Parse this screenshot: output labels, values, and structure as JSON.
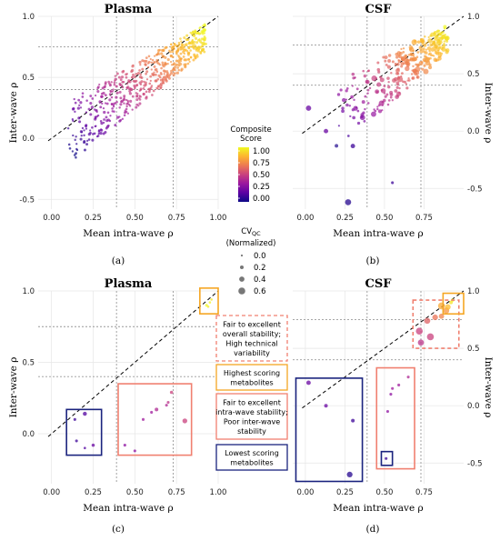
{
  "colors": {
    "gradient": [
      "#0d0887",
      "#5b02a3",
      "#9a169f",
      "#c9417e",
      "#ec7853",
      "#fdb42f",
      "#f0f921"
    ],
    "fair_excellent_high_var": "#f08070",
    "highest_scoring": "#f5a623",
    "fair_intra_poor_inter": "#f08070",
    "lowest_scoring": "#1a237e",
    "grid": "#e6e6e6",
    "reference": "#999999"
  },
  "legend": {
    "composite_title_1": "Composite",
    "composite_title_2": "Score",
    "composite_ticks": [
      "1.00",
      "0.75",
      "0.50",
      "0.25",
      "0.00"
    ],
    "cv_title_main": "CV",
    "cv_title_sub": "QC",
    "cv_title_2": "(Normalized)",
    "cv_ticks": [
      "0.0",
      "0.2",
      "0.4",
      "0.6"
    ]
  },
  "annotations": {
    "fair_excellent_high_var": [
      "Fair to excellent",
      "overall stability;",
      "High technical",
      "variability"
    ],
    "highest_scoring": [
      "Highest scoring",
      "metabolites"
    ],
    "fair_intra_poor_inter": [
      "Fair to excellent",
      "intra-wave stability;",
      "Poor inter-wave",
      "stability"
    ],
    "lowest_scoring": [
      "Lowest scoring",
      "metabolites"
    ]
  },
  "chart_data": [
    {
      "panel": "(a)",
      "type": "scatter",
      "title": "Plasma",
      "xlabel": "Mean intra-wave ρ",
      "ylabel": "Inter-wave ρ",
      "xlim": [
        -0.08,
        1.0
      ],
      "ylim": [
        -0.58,
        1.0
      ],
      "xticks": [
        "0.00",
        "0.25",
        "0.50",
        "0.75",
        "1.00"
      ],
      "yticks": [
        "-0.5",
        "0.0",
        "0.5",
        "1.0"
      ],
      "reference_x": [
        0.39,
        0.73
      ],
      "reference_y": [
        0.4,
        0.75
      ],
      "identity_line": true,
      "points_note": "dense cloud of ~600 metabolites along the diagonal, composite score rising with intra- and inter-wave ρ"
    },
    {
      "panel": "(b)",
      "type": "scatter",
      "title": "CSF",
      "xlabel": "Mean intra-wave ρ",
      "ylabel": "Inter-wave ρ",
      "xlim": [
        -0.08,
        1.0
      ],
      "ylim": [
        -0.68,
        1.0
      ],
      "xticks": [
        "0.00",
        "0.25",
        "0.50",
        "0.75"
      ],
      "yticks": [
        "-0.5",
        "0.0",
        "0.5",
        "1.0"
      ],
      "reference_x": [
        0.39,
        0.73
      ],
      "reference_y": [
        0.4,
        0.75
      ],
      "identity_line": true,
      "points": [
        {
          "x": 0.27,
          "y": -0.62,
          "s": 0.5,
          "c": 0.05
        },
        {
          "x": 0.55,
          "y": -0.45,
          "s": 0.1,
          "c": 0.1
        },
        {
          "x": 0.02,
          "y": 0.2,
          "s": 0.4,
          "c": 0.2
        },
        {
          "x": 0.13,
          "y": 0.0,
          "s": 0.3,
          "c": 0.2
        },
        {
          "x": 0.3,
          "y": -0.13,
          "s": 0.3,
          "c": 0.1
        }
      ]
    },
    {
      "panel": "(c)",
      "type": "scatter",
      "title": "Plasma",
      "xlabel": "Mean intra-wave ρ",
      "ylabel": "Inter-wave ρ",
      "xlim": [
        -0.08,
        1.0
      ],
      "ylim": [
        -0.35,
        1.0
      ],
      "xticks": [
        "0.00",
        "0.25",
        "0.50",
        "0.75",
        "1.00"
      ],
      "yticks": [
        "0.0",
        "0.5",
        "1.0"
      ],
      "reference_x": [
        0.39,
        0.73
      ],
      "reference_y": [
        0.4,
        0.75
      ],
      "identity_line": true,
      "points": [
        {
          "x": 0.93,
          "y": 0.9,
          "s": 0.1,
          "c": 1.0
        },
        {
          "x": 0.95,
          "y": 0.92,
          "s": 0.05,
          "c": 0.98
        },
        {
          "x": 0.96,
          "y": 0.94,
          "s": 0.05,
          "c": 0.96
        },
        {
          "x": 0.94,
          "y": 0.89,
          "s": 0.05,
          "c": 0.97
        },
        {
          "x": 0.14,
          "y": 0.1,
          "s": 0.1,
          "c": 0.1
        },
        {
          "x": 0.2,
          "y": 0.14,
          "s": 0.25,
          "c": 0.15
        },
        {
          "x": 0.15,
          "y": -0.05,
          "s": 0.1,
          "c": 0.1
        },
        {
          "x": 0.2,
          "y": -0.1,
          "s": 0.05,
          "c": 0.15
        },
        {
          "x": 0.25,
          "y": -0.08,
          "s": 0.15,
          "c": 0.2
        },
        {
          "x": 0.44,
          "y": -0.08,
          "s": 0.1,
          "c": 0.3
        },
        {
          "x": 0.5,
          "y": -0.12,
          "s": 0.1,
          "c": 0.3
        },
        {
          "x": 0.55,
          "y": 0.1,
          "s": 0.1,
          "c": 0.35
        },
        {
          "x": 0.6,
          "y": 0.15,
          "s": 0.1,
          "c": 0.35
        },
        {
          "x": 0.63,
          "y": 0.17,
          "s": 0.2,
          "c": 0.4
        },
        {
          "x": 0.69,
          "y": 0.2,
          "s": 0.1,
          "c": 0.4
        },
        {
          "x": 0.7,
          "y": 0.22,
          "s": 0.1,
          "c": 0.45
        },
        {
          "x": 0.72,
          "y": 0.29,
          "s": 0.15,
          "c": 0.5
        },
        {
          "x": 0.8,
          "y": 0.09,
          "s": 0.35,
          "c": 0.5
        }
      ]
    },
    {
      "panel": "(d)",
      "type": "scatter",
      "title": "CSF",
      "xlabel": "Mean intra-wave ρ",
      "ylabel": "Inter-wave ρ",
      "xlim": [
        -0.08,
        1.0
      ],
      "ylim": [
        -0.68,
        1.0
      ],
      "xticks": [
        "0.00",
        "0.25",
        "0.50",
        "0.75"
      ],
      "yticks": [
        "-0.5",
        "0.0",
        "0.5",
        "1.0"
      ],
      "reference_x": [
        0.39,
        0.73
      ],
      "reference_y": [
        0.4,
        0.75
      ],
      "identity_line": true,
      "points": [
        {
          "x": 0.02,
          "y": 0.2,
          "s": 0.3,
          "c": 0.2
        },
        {
          "x": 0.13,
          "y": 0.0,
          "s": 0.2,
          "c": 0.2
        },
        {
          "x": 0.3,
          "y": -0.13,
          "s": 0.2,
          "c": 0.1
        },
        {
          "x": 0.28,
          "y": -0.6,
          "s": 0.45,
          "c": 0.05
        },
        {
          "x": 0.51,
          "y": -0.46,
          "s": 0.1,
          "c": 0.1
        },
        {
          "x": 0.52,
          "y": -0.05,
          "s": 0.1,
          "c": 0.3
        },
        {
          "x": 0.54,
          "y": 0.1,
          "s": 0.1,
          "c": 0.3
        },
        {
          "x": 0.55,
          "y": 0.15,
          "s": 0.1,
          "c": 0.35
        },
        {
          "x": 0.59,
          "y": 0.18,
          "s": 0.1,
          "c": 0.35
        },
        {
          "x": 0.65,
          "y": 0.25,
          "s": 0.1,
          "c": 0.4
        },
        {
          "x": 0.72,
          "y": 0.65,
          "s": 0.6,
          "c": 0.5
        },
        {
          "x": 0.79,
          "y": 0.6,
          "s": 0.6,
          "c": 0.5
        },
        {
          "x": 0.73,
          "y": 0.55,
          "s": 0.5,
          "c": 0.45
        },
        {
          "x": 0.77,
          "y": 0.74,
          "s": 0.5,
          "c": 0.6
        },
        {
          "x": 0.82,
          "y": 0.77,
          "s": 0.45,
          "c": 0.65
        },
        {
          "x": 0.86,
          "y": 0.78,
          "s": 0.4,
          "c": 0.7
        },
        {
          "x": 0.89,
          "y": 0.83,
          "s": 0.5,
          "c": 0.75
        },
        {
          "x": 0.86,
          "y": 0.87,
          "s": 0.6,
          "c": 0.8
        },
        {
          "x": 0.9,
          "y": 0.86,
          "s": 0.45,
          "c": 0.85
        },
        {
          "x": 0.92,
          "y": 0.9,
          "s": 0.2,
          "c": 0.95
        },
        {
          "x": 0.93,
          "y": 0.92,
          "s": 0.15,
          "c": 1.0
        }
      ]
    }
  ]
}
